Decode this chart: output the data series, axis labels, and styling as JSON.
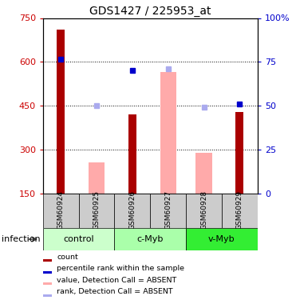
{
  "title": "GDS1427 / 225953_at",
  "samples": [
    "GSM60924",
    "GSM60925",
    "GSM60926",
    "GSM60927",
    "GSM60928",
    "GSM60929"
  ],
  "groups": [
    {
      "label": "control",
      "samples": [
        0,
        1
      ],
      "color": "#ccffcc"
    },
    {
      "label": "c-Myb",
      "samples": [
        2,
        3
      ],
      "color": "#aaffaa"
    },
    {
      "label": "v-Myb",
      "samples": [
        4,
        5
      ],
      "color": "#33ee33"
    }
  ],
  "red_bars": [
    710,
    null,
    420,
    null,
    null,
    430
  ],
  "pink_bars": [
    null,
    255,
    null,
    565,
    290,
    null
  ],
  "blue_squares": [
    610,
    null,
    570,
    null,
    null,
    455
  ],
  "light_blue_squares": [
    null,
    450,
    null,
    575,
    445,
    null
  ],
  "ylim_left": [
    150,
    750
  ],
  "ylim_right": [
    0,
    100
  ],
  "yticks_left": [
    150,
    300,
    450,
    600,
    750
  ],
  "yticks_right": [
    0,
    25,
    50,
    75,
    100
  ],
  "ytick_labels_right": [
    "0",
    "25",
    "50",
    "75",
    "100%"
  ],
  "red_color": "#aa0000",
  "pink_color": "#ffaaaa",
  "blue_color": "#0000cc",
  "light_blue_color": "#aaaaee",
  "group_label": "infection",
  "title_fontsize": 10,
  "gridline_vals": [
    300,
    450,
    600
  ],
  "legend_items": [
    {
      "color": "#aa0000",
      "label": "count"
    },
    {
      "color": "#0000cc",
      "label": "percentile rank within the sample"
    },
    {
      "color": "#ffaaaa",
      "label": "value, Detection Call = ABSENT"
    },
    {
      "color": "#aaaaee",
      "label": "rank, Detection Call = ABSENT"
    }
  ]
}
